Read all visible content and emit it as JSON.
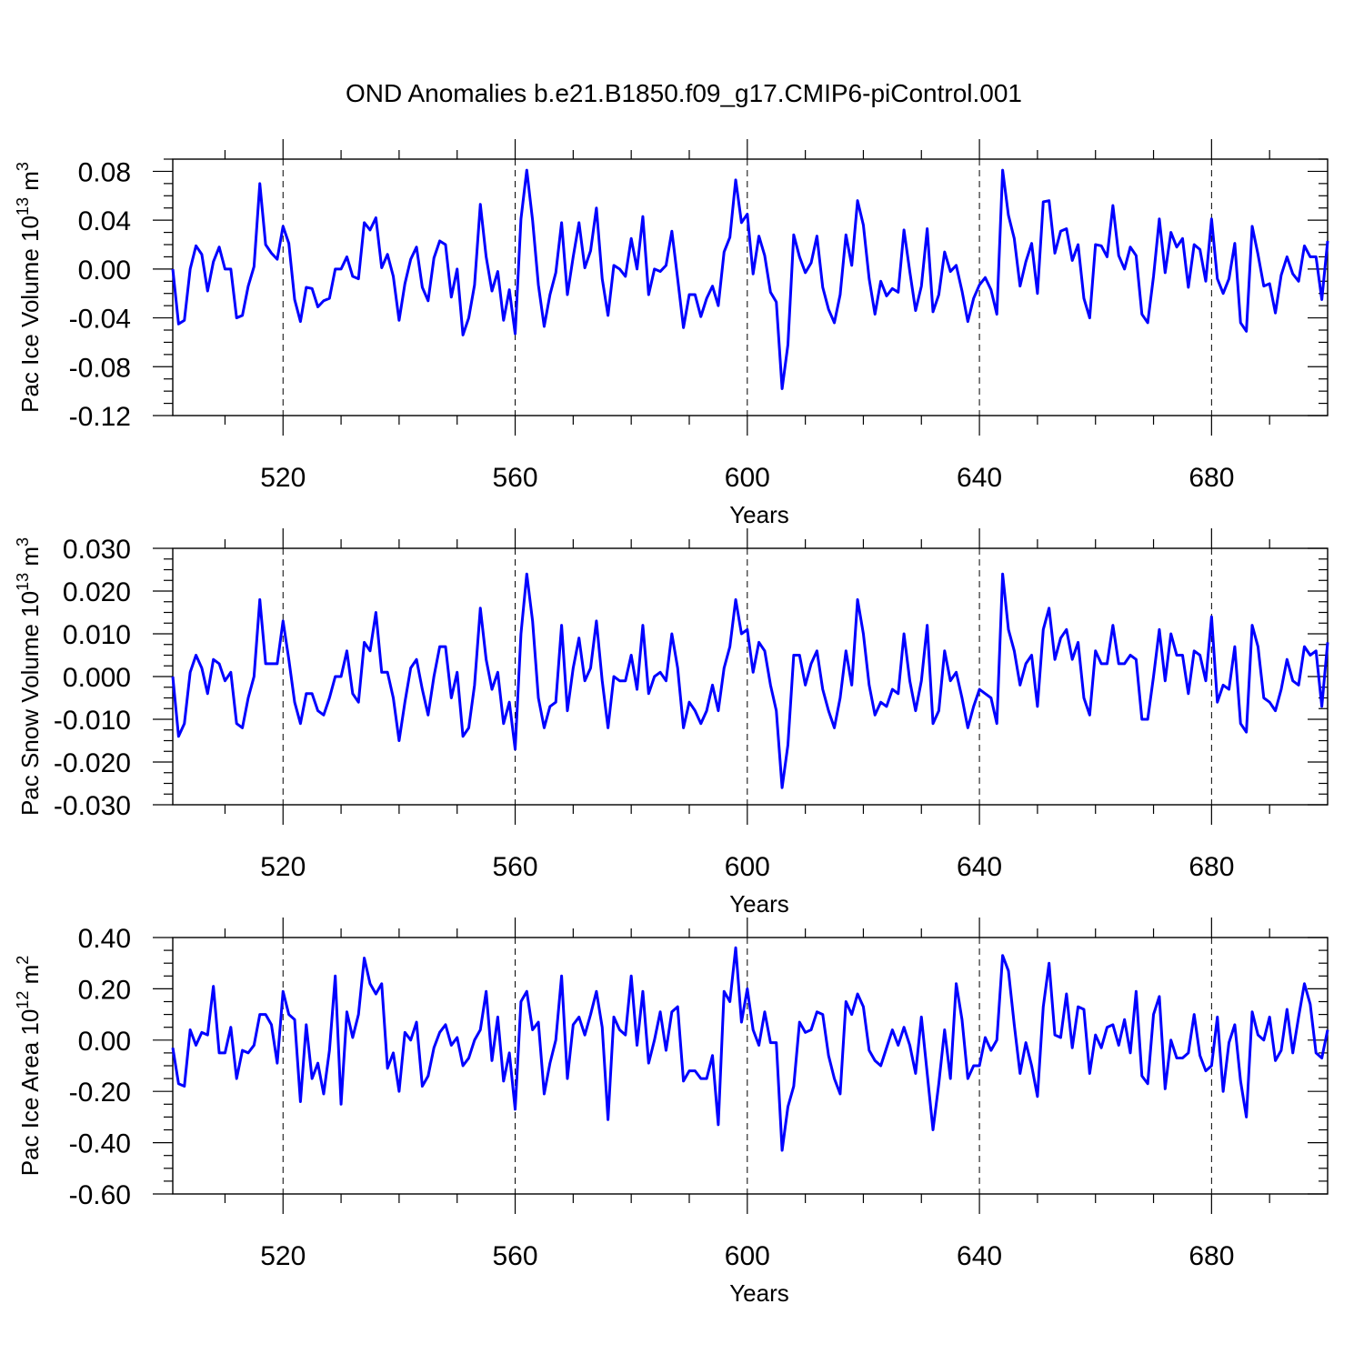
{
  "chart_data": {
    "type": "line",
    "title": "OND Anomalies b.e21.B1850.f09_g17.CMIP6-piControl.001",
    "x": {
      "start": 501,
      "step": 1,
      "range": [
        501,
        700
      ],
      "ticks": [
        520,
        560,
        600,
        640,
        680
      ],
      "tick_labels": [
        "520",
        "560",
        "600",
        "640",
        "680"
      ],
      "label": "Years",
      "grid_dashed_at_major_ticks": true
    },
    "panels": [
      {
        "name": "Pac Ice Volume",
        "ylabel_text": "Pac Ice Volume 10",
        "ylabel_exp": "13",
        "ylabel_unit": " m",
        "ylabel_unit_exp": "3",
        "ylim": [
          -0.12,
          0.09
        ],
        "yticks": [
          -0.12,
          -0.08,
          -0.04,
          0.0,
          0.04,
          0.08
        ],
        "ytick_labels": [
          "-0.12",
          "-0.08",
          "-0.04",
          "0.00",
          "0.04",
          "0.08"
        ],
        "color": "#0000ff",
        "values": [
          0.0,
          -0.045,
          -0.042,
          0.0,
          0.019,
          0.012,
          -0.018,
          0.006,
          0.018,
          0.0,
          0.0,
          -0.04,
          -0.038,
          -0.014,
          0.002,
          0.07,
          0.02,
          0.013,
          0.008,
          0.035,
          0.021,
          -0.025,
          -0.043,
          -0.015,
          -0.016,
          -0.031,
          -0.026,
          -0.024,
          0.0,
          0.0,
          0.01,
          -0.006,
          -0.008,
          0.038,
          0.032,
          0.042,
          0.001,
          0.012,
          -0.006,
          -0.042,
          -0.012,
          0.008,
          0.018,
          -0.015,
          -0.026,
          0.009,
          0.023,
          0.02,
          -0.023,
          0.0,
          -0.054,
          -0.04,
          -0.013,
          0.053,
          0.01,
          -0.018,
          -0.002,
          -0.042,
          -0.017,
          -0.053,
          0.041,
          0.081,
          0.04,
          -0.013,
          -0.047,
          -0.021,
          -0.003,
          0.038,
          -0.021,
          0.01,
          0.038,
          0.001,
          0.015,
          0.05,
          -0.008,
          -0.038,
          0.003,
          0.0,
          -0.006,
          0.025,
          0.0,
          0.043,
          -0.021,
          0.0,
          -0.002,
          0.003,
          0.031,
          -0.008,
          -0.048,
          -0.021,
          -0.021,
          -0.039,
          -0.024,
          -0.014,
          -0.03,
          0.014,
          0.026,
          0.073,
          0.038,
          0.045,
          -0.004,
          0.027,
          0.011,
          -0.019,
          -0.027,
          -0.098,
          -0.062,
          0.028,
          0.01,
          -0.003,
          0.005,
          0.027,
          -0.015,
          -0.033,
          -0.044,
          -0.021,
          0.028,
          0.003,
          0.056,
          0.036,
          -0.008,
          -0.037,
          -0.01,
          -0.022,
          -0.016,
          -0.019,
          0.032,
          -0.002,
          -0.034,
          -0.014,
          0.033,
          -0.035,
          -0.021,
          0.014,
          -0.002,
          0.003,
          -0.018,
          -0.043,
          -0.024,
          -0.013,
          -0.007,
          -0.017,
          -0.037,
          0.081,
          0.044,
          0.025,
          -0.014,
          0.006,
          0.021,
          -0.02,
          0.055,
          0.056,
          0.013,
          0.031,
          0.033,
          0.007,
          0.02,
          -0.024,
          -0.04,
          0.02,
          0.019,
          0.01,
          0.052,
          0.011,
          0.0,
          0.018,
          0.011,
          -0.037,
          -0.044,
          -0.006,
          0.041,
          -0.003,
          0.03,
          0.018,
          0.025,
          -0.015,
          0.02,
          0.016,
          -0.01,
          0.041,
          -0.008,
          -0.02,
          -0.008,
          0.021,
          -0.044,
          -0.051,
          0.035,
          0.012,
          -0.014,
          -0.012,
          -0.036,
          -0.005,
          0.01,
          -0.004,
          -0.01,
          0.019,
          0.01,
          0.01,
          -0.025,
          0.023
        ]
      },
      {
        "name": "Pac Snow Volume",
        "ylabel_text": "Pac Snow Volume 10",
        "ylabel_exp": "13",
        "ylabel_unit": " m",
        "ylabel_unit_exp": "3",
        "ylim": [
          -0.03,
          0.03
        ],
        "yticks": [
          -0.03,
          -0.02,
          -0.01,
          0.0,
          0.01,
          0.02,
          0.03
        ],
        "ytick_labels": [
          "-0.030",
          "-0.020",
          "-0.010",
          "0.000",
          "0.010",
          "0.020",
          "0.030"
        ],
        "color": "#0000ff",
        "values": [
          0.0,
          -0.014,
          -0.011,
          0.001,
          0.005,
          0.002,
          -0.004,
          0.004,
          0.003,
          -0.001,
          0.001,
          -0.011,
          -0.012,
          -0.005,
          0.0,
          0.018,
          0.003,
          0.003,
          0.003,
          0.013,
          0.004,
          -0.006,
          -0.011,
          -0.004,
          -0.004,
          -0.008,
          -0.009,
          -0.005,
          0.0,
          0.0,
          0.006,
          -0.004,
          -0.006,
          0.008,
          0.006,
          0.015,
          0.001,
          0.001,
          -0.005,
          -0.015,
          -0.006,
          0.002,
          0.004,
          -0.003,
          -0.009,
          0.0,
          0.007,
          0.007,
          -0.005,
          0.001,
          -0.014,
          -0.012,
          -0.002,
          0.016,
          0.004,
          -0.003,
          0.001,
          -0.011,
          -0.006,
          -0.017,
          0.01,
          0.024,
          0.013,
          -0.005,
          -0.012,
          -0.007,
          -0.006,
          0.012,
          -0.008,
          0.002,
          0.009,
          -0.001,
          0.002,
          0.013,
          -0.001,
          -0.012,
          0.0,
          -0.001,
          -0.001,
          0.005,
          -0.003,
          0.012,
          -0.004,
          0.0,
          0.001,
          -0.001,
          0.01,
          0.002,
          -0.012,
          -0.006,
          -0.008,
          -0.011,
          -0.008,
          -0.002,
          -0.008,
          0.002,
          0.007,
          0.018,
          0.01,
          0.011,
          0.001,
          0.008,
          0.006,
          -0.002,
          -0.008,
          -0.026,
          -0.016,
          0.005,
          0.005,
          -0.002,
          0.003,
          0.006,
          -0.003,
          -0.008,
          -0.012,
          -0.005,
          0.006,
          -0.002,
          0.018,
          0.01,
          -0.002,
          -0.009,
          -0.006,
          -0.007,
          -0.003,
          -0.004,
          0.01,
          -0.001,
          -0.008,
          -0.001,
          0.012,
          -0.011,
          -0.008,
          0.006,
          -0.001,
          0.001,
          -0.005,
          -0.012,
          -0.007,
          -0.003,
          -0.004,
          -0.005,
          -0.011,
          0.024,
          0.011,
          0.006,
          -0.002,
          0.003,
          0.005,
          -0.007,
          0.011,
          0.016,
          0.004,
          0.009,
          0.011,
          0.004,
          0.008,
          -0.005,
          -0.009,
          0.006,
          0.003,
          0.003,
          0.012,
          0.003,
          0.003,
          0.005,
          0.004,
          -0.01,
          -0.01,
          0.0,
          0.011,
          -0.001,
          0.01,
          0.005,
          0.005,
          -0.004,
          0.006,
          0.005,
          -0.001,
          0.014,
          -0.006,
          -0.002,
          -0.003,
          0.007,
          -0.011,
          -0.013,
          0.012,
          0.007,
          -0.005,
          -0.006,
          -0.008,
          -0.003,
          0.004,
          -0.001,
          -0.002,
          0.007,
          0.005,
          0.006,
          -0.007,
          0.008
        ]
      },
      {
        "name": "Pac Ice Area",
        "ylabel_text": "Pac Ice Area 10",
        "ylabel_exp": "12",
        "ylabel_unit": " m",
        "ylabel_unit_exp": "2",
        "ylim": [
          -0.6,
          0.4
        ],
        "yticks": [
          -0.6,
          -0.4,
          -0.2,
          0.0,
          0.2,
          0.4
        ],
        "ytick_labels": [
          "-0.60",
          "-0.40",
          "-0.20",
          "0.00",
          "0.20",
          "0.40"
        ],
        "color": "#0000ff",
        "values": [
          -0.03,
          -0.17,
          -0.18,
          0.04,
          -0.02,
          0.03,
          0.02,
          0.21,
          -0.05,
          -0.05,
          0.05,
          -0.15,
          -0.04,
          -0.05,
          -0.02,
          0.1,
          0.1,
          0.06,
          -0.09,
          0.19,
          0.1,
          0.08,
          -0.24,
          0.06,
          -0.15,
          -0.09,
          -0.21,
          -0.04,
          0.25,
          -0.25,
          0.11,
          0.01,
          0.1,
          0.32,
          0.22,
          0.18,
          0.22,
          -0.11,
          -0.05,
          -0.2,
          0.03,
          0.0,
          0.07,
          -0.18,
          -0.14,
          -0.03,
          0.03,
          0.06,
          -0.02,
          0.01,
          -0.1,
          -0.07,
          0.0,
          0.04,
          0.19,
          -0.08,
          0.09,
          -0.16,
          -0.05,
          -0.27,
          0.15,
          0.19,
          0.04,
          0.07,
          -0.21,
          -0.09,
          0.0,
          0.25,
          -0.15,
          0.06,
          0.09,
          0.02,
          0.1,
          0.19,
          0.05,
          -0.31,
          0.09,
          0.04,
          0.02,
          0.25,
          -0.02,
          0.19,
          -0.09,
          0.0,
          0.11,
          -0.04,
          0.11,
          0.13,
          -0.16,
          -0.12,
          -0.12,
          -0.15,
          -0.15,
          -0.06,
          -0.33,
          0.19,
          0.15,
          0.36,
          0.07,
          0.2,
          0.04,
          -0.02,
          0.11,
          -0.01,
          -0.01,
          -0.43,
          -0.26,
          -0.18,
          0.07,
          0.03,
          0.04,
          0.11,
          0.1,
          -0.06,
          -0.15,
          -0.21,
          0.15,
          0.1,
          0.18,
          0.13,
          -0.04,
          -0.08,
          -0.1,
          -0.03,
          0.04,
          -0.02,
          0.05,
          -0.02,
          -0.13,
          0.09,
          -0.13,
          -0.35,
          -0.17,
          0.04,
          -0.15,
          0.22,
          0.08,
          -0.15,
          -0.1,
          -0.1,
          0.01,
          -0.04,
          0.0,
          0.33,
          0.27,
          0.06,
          -0.13,
          -0.01,
          -0.1,
          -0.22,
          0.13,
          0.3,
          0.02,
          0.01,
          0.18,
          -0.03,
          0.13,
          0.12,
          -0.13,
          0.02,
          -0.03,
          0.05,
          0.06,
          -0.02,
          0.08,
          -0.05,
          0.19,
          -0.14,
          -0.17,
          0.1,
          0.17,
          -0.19,
          0.0,
          -0.07,
          -0.07,
          -0.05,
          0.1,
          -0.06,
          -0.12,
          -0.1,
          0.09,
          -0.2,
          -0.01,
          0.06,
          -0.16,
          -0.3,
          0.11,
          0.02,
          0.0,
          0.09,
          -0.08,
          -0.04,
          0.12,
          -0.05,
          0.09,
          0.22,
          0.14,
          -0.05,
          -0.07,
          0.04
        ]
      }
    ]
  }
}
